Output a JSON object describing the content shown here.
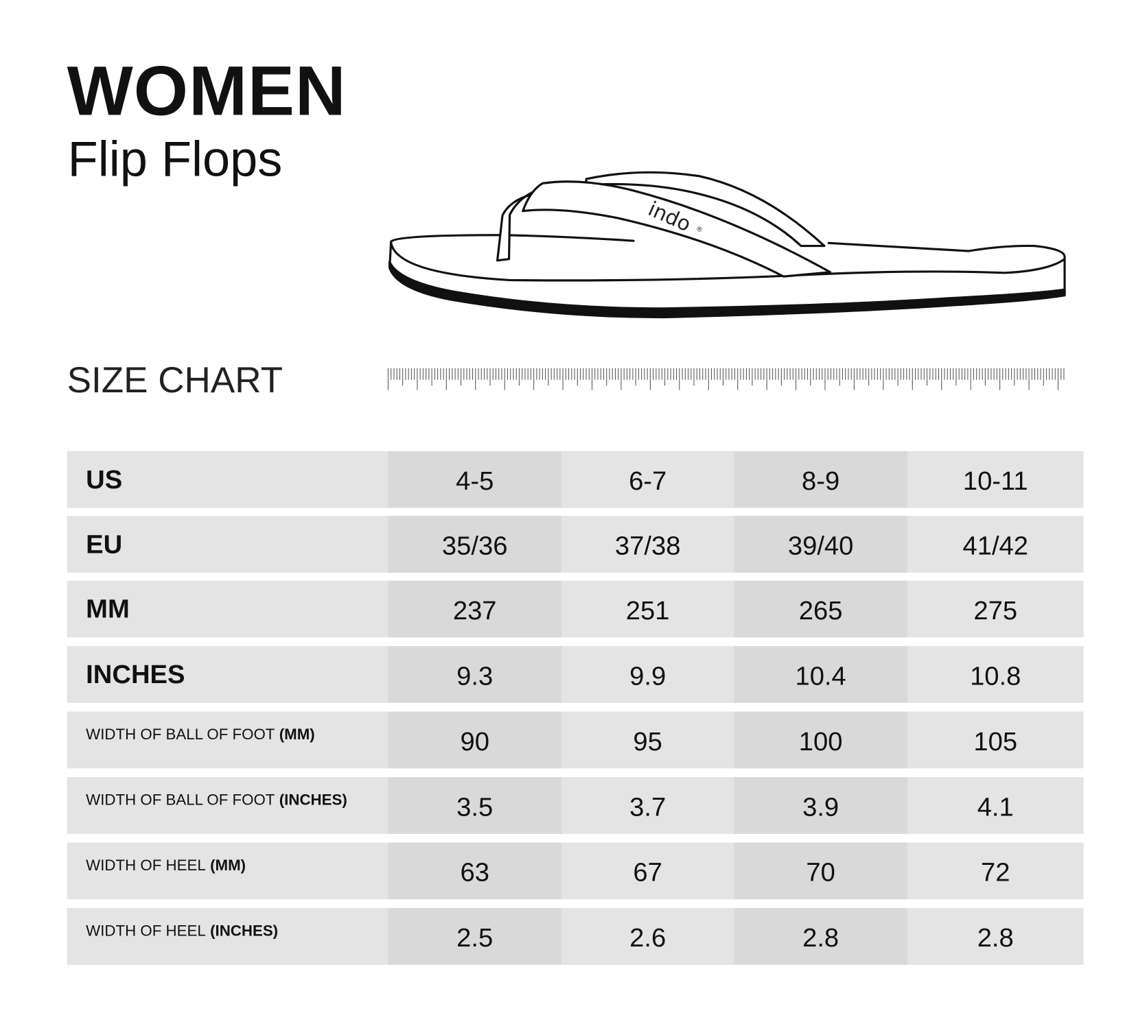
{
  "header": {
    "title": "WOMEN",
    "subtitle": "Flip Flops"
  },
  "illustration": {
    "brand_mark": "indo",
    "registered": "®"
  },
  "section_label": "SIZE CHART",
  "table": {
    "rows": [
      {
        "label": "US",
        "label_suffix": "",
        "values": [
          "4-5",
          "6-7",
          "8-9",
          "10-11"
        ]
      },
      {
        "label": "EU",
        "label_suffix": "",
        "values": [
          "35/36",
          "37/38",
          "39/40",
          "41/42"
        ]
      },
      {
        "label": "MM",
        "label_suffix": "",
        "values": [
          "237",
          "251",
          "265",
          "275"
        ]
      },
      {
        "label": "INCHES",
        "label_suffix": "",
        "values": [
          "9.3",
          "9.9",
          "10.4",
          "10.8"
        ]
      },
      {
        "label": "WIDTH OF BALL OF FOOT",
        "label_suffix": "(MM)",
        "values": [
          "90",
          "95",
          "100",
          "105"
        ]
      },
      {
        "label": "WIDTH OF BALL OF FOOT",
        "label_suffix": "(INCHES)",
        "values": [
          "3.5",
          "3.7",
          "3.9",
          "4.1"
        ]
      },
      {
        "label": "WIDTH OF HEEL",
        "label_suffix": "(MM)",
        "values": [
          "63",
          "67",
          "70",
          "72"
        ]
      },
      {
        "label": "WIDTH OF HEEL",
        "label_suffix": "(INCHES)",
        "values": [
          "2.5",
          "2.6",
          "2.8",
          "2.8"
        ]
      }
    ]
  },
  "colors": {
    "row_bg": "#e4e4e4",
    "alt_column_bg": "#d9d9d9",
    "text": "#111111"
  }
}
